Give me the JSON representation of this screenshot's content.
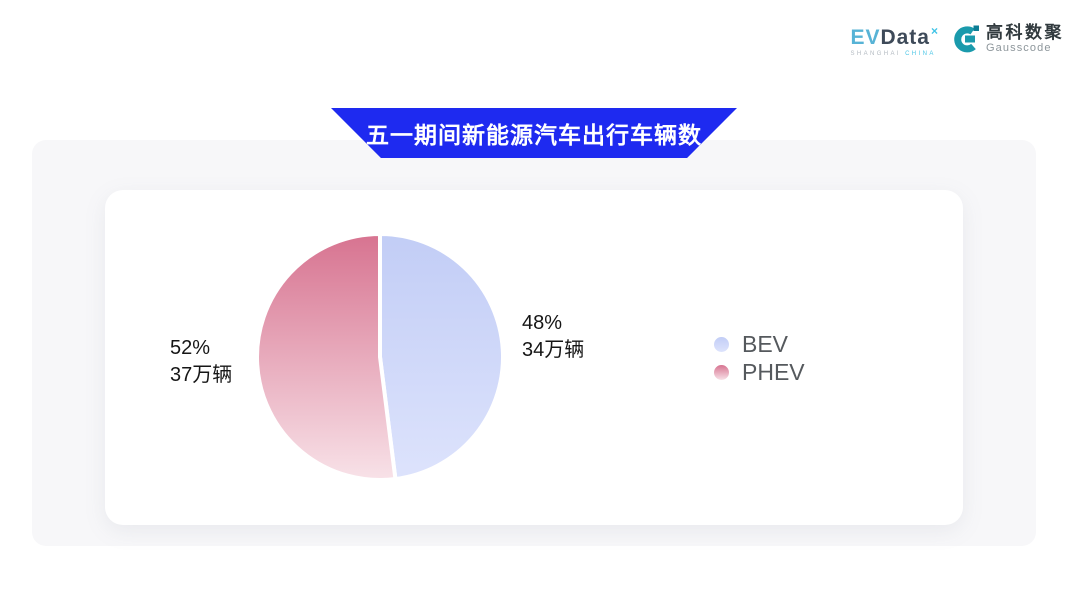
{
  "logo_bar": {
    "evdata": {
      "word_part1": "EV",
      "word_part2": "Data",
      "x_mark": "×",
      "subtext_left": "SHANGHAI",
      "subtext_right": "CHINA"
    },
    "gausscode": {
      "name_cn": "高科数聚",
      "name_en": "Gausscode"
    }
  },
  "banner": {
    "title": "五一期间新能源汽车出行车辆数"
  },
  "colors": {
    "banner_blue": "#1e2af0",
    "panel_gray": "#f7f7f9",
    "card_white": "#ffffff",
    "evdata_light_blue": "#57b3d6",
    "evdata_dark": "#3e4a59",
    "evdata_cyan": "#3fc3e6",
    "gausscode_teal": "#1a9aac",
    "gausscode_dark_teal": "#0c7d95"
  },
  "chart_data": {
    "type": "pie",
    "title": "五一期间新能源汽车出行车辆数",
    "unit": "万辆",
    "legend_position": "right",
    "start_angle": "12 o'clock, clockwise",
    "series": [
      {
        "name": "BEV",
        "percent": 48,
        "vehicles_wan": 34,
        "percent_label": "48%",
        "count_label": "34万辆",
        "color_top": "#c2cdf6",
        "color_bottom": "#dde3fc"
      },
      {
        "name": "PHEV",
        "percent": 52,
        "vehicles_wan": 37,
        "percent_label": "52%",
        "count_label": "37万辆",
        "color_top": "#d77390",
        "color_bottom": "#f8e2e8"
      }
    ]
  }
}
